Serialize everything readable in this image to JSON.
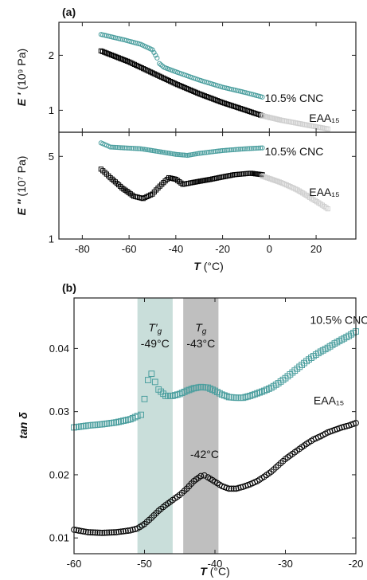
{
  "colors": {
    "cnc": "#4a9e9e",
    "eaa": "#000000",
    "eaa_faded": "#cfcfcf",
    "band_tg_prime": "#b7d3ce",
    "band_tg": "#a9a9a9"
  },
  "chart_data": [
    {
      "type": "scatter",
      "panel_label": "(a)",
      "ylabel_symbol": "E ′",
      "ylabel_unit": "(10⁹ Pa)",
      "xlim": [
        -90,
        37
      ],
      "ylim": [
        0.6,
        2.6
      ],
      "yticks": [
        {
          "v": 1,
          "label": "1"
        },
        {
          "v": 2,
          "label": "2"
        }
      ],
      "annotations": [
        {
          "text": "10.5%  CNC",
          "x": -2,
          "y": 1.22
        },
        {
          "text": "EAA₁₅",
          "x": 17,
          "y": 0.86
        }
      ],
      "series": [
        {
          "name": "10.5%  CNC",
          "marker": "circle",
          "color": "cnc",
          "x": [
            -72,
            -62,
            -55,
            -50,
            -48,
            -47,
            -45,
            -40,
            -30,
            -20,
            -10,
            -3
          ],
          "y": [
            2.38,
            2.28,
            2.2,
            2.1,
            1.95,
            1.85,
            1.78,
            1.7,
            1.55,
            1.42,
            1.32,
            1.24
          ]
        },
        {
          "name": "EAA₁₅",
          "marker": "square",
          "color": "eaa",
          "x": [
            -72,
            -60,
            -50,
            -40,
            -30,
            -20,
            -10,
            -3
          ],
          "y": [
            2.08,
            1.88,
            1.68,
            1.48,
            1.3,
            1.14,
            1.0,
            0.9
          ]
        },
        {
          "name": "",
          "marker": "square",
          "color": "eaa_faded",
          "x": [
            -3,
            5,
            15,
            25
          ],
          "y": [
            0.9,
            0.82,
            0.74,
            0.66
          ]
        }
      ]
    },
    {
      "type": "scatter",
      "ylabel_symbol": "E ″",
      "ylabel_unit": "(10⁷ Pa)",
      "xlabel_symbol": "T",
      "xlabel_unit": "(°C)",
      "xlim": [
        -90,
        37
      ],
      "ylim": [
        1,
        8
      ],
      "log_y": true,
      "xticks": [
        -80,
        -60,
        -40,
        -20,
        0,
        20
      ],
      "yticks": [
        {
          "v": 1,
          "label": "1"
        },
        {
          "v": 5,
          "label": "5"
        }
      ],
      "annotations": [
        {
          "text": "10.5%  CNC",
          "x": -2,
          "y": 5.5
        },
        {
          "text": "EAA₁₅",
          "x": 17,
          "y": 2.5
        }
      ],
      "series": [
        {
          "name": "10.5%  CNC",
          "marker": "circle",
          "color": "cnc",
          "x": [
            -72,
            -68,
            -62,
            -55,
            -50,
            -45,
            -40,
            -35,
            -30,
            -20,
            -10,
            -3
          ],
          "y": [
            6.5,
            6.0,
            5.9,
            5.8,
            5.6,
            5.4,
            5.2,
            5.1,
            5.3,
            5.6,
            5.8,
            5.9
          ]
        },
        {
          "name": "EAA₁₅",
          "marker": "square",
          "color": "eaa",
          "x": [
            -72,
            -68,
            -63,
            -58,
            -54,
            -50,
            -46,
            -43,
            -40,
            -37,
            -33,
            -25,
            -15,
            -8,
            -3
          ],
          "y": [
            3.9,
            3.3,
            2.7,
            2.3,
            2.2,
            2.4,
            2.9,
            3.3,
            3.2,
            2.9,
            3.0,
            3.2,
            3.5,
            3.6,
            3.5
          ]
        },
        {
          "name": "",
          "marker": "square",
          "color": "eaa_faded",
          "x": [
            -3,
            5,
            12,
            18,
            25
          ],
          "y": [
            3.4,
            3.0,
            2.6,
            2.2,
            1.8
          ]
        }
      ]
    },
    {
      "type": "scatter",
      "panel_label": "(b)",
      "ylabel_symbol": "tan δ",
      "xlabel_symbol": "T",
      "xlabel_unit": "(°C)",
      "xlim": [
        -60,
        -20
      ],
      "ylim": [
        0.0075,
        0.048
      ],
      "xticks": [
        -60,
        -50,
        -40,
        -30,
        -20
      ],
      "yticks": [
        {
          "v": 0.01,
          "label": "0.01"
        },
        {
          "v": 0.02,
          "label": "0.02"
        },
        {
          "v": 0.03,
          "label": "0.03"
        },
        {
          "v": 0.04,
          "label": "0.04"
        }
      ],
      "bands": [
        {
          "x0": -51,
          "x1": -46,
          "color": "band_tg_prime",
          "symbol": "T′g",
          "label": "-49°C"
        },
        {
          "x0": -44.5,
          "x1": -39.5,
          "color": "band_tg",
          "symbol": "Tg",
          "label": "-43°C"
        }
      ],
      "annotations": [
        {
          "text": "10.5% CNC",
          "x": -26.5,
          "y": 0.0445
        },
        {
          "text": "EAA₁₅",
          "x": -26,
          "y": 0.0318
        },
        {
          "text": "-42°C",
          "x": -43.5,
          "y": 0.0233
        }
      ],
      "series": [
        {
          "name": "10.5% CNC",
          "marker": "square",
          "color": "cnc",
          "x": [
            -60,
            -58,
            -56,
            -54,
            -52,
            -51,
            -50.5,
            -50,
            -49.5,
            -49,
            -48.5,
            -48,
            -47,
            -46,
            -45,
            -44,
            -43,
            -42,
            -41,
            -40,
            -39,
            -38,
            -37,
            -36,
            -35,
            -34,
            -33,
            -32,
            -31,
            -30,
            -29,
            -28,
            -27,
            -26,
            -25,
            -24,
            -23,
            -22,
            -21,
            -20
          ],
          "y": [
            0.0275,
            0.0278,
            0.028,
            0.0283,
            0.0288,
            0.0293,
            0.0295,
            0.032,
            0.035,
            0.036,
            0.0347,
            0.0335,
            0.0325,
            0.0325,
            0.0328,
            0.0333,
            0.0337,
            0.0339,
            0.0338,
            0.0333,
            0.0327,
            0.0323,
            0.0322,
            0.0322,
            0.0325,
            0.0329,
            0.0333,
            0.0338,
            0.0345,
            0.0353,
            0.0362,
            0.0371,
            0.038,
            0.0388,
            0.0395,
            0.0401,
            0.0408,
            0.0414,
            0.042,
            0.0427
          ]
        },
        {
          "name": "EAA₁₅",
          "marker": "circle",
          "color": "eaa",
          "x": [
            -60,
            -58,
            -56,
            -54,
            -52,
            -51,
            -50,
            -49,
            -48,
            -47,
            -46,
            -45,
            -44,
            -43,
            -42,
            -41.5,
            -41,
            -40,
            -39,
            -38,
            -37,
            -36,
            -35,
            -34,
            -33,
            -32,
            -31,
            -30,
            -29,
            -28,
            -27,
            -26,
            -25,
            -24,
            -23,
            -22,
            -21,
            -20
          ],
          "y": [
            0.0113,
            0.0109,
            0.0108,
            0.0109,
            0.0112,
            0.0115,
            0.0122,
            0.0132,
            0.0143,
            0.0152,
            0.016,
            0.0168,
            0.0178,
            0.019,
            0.0198,
            0.0199,
            0.0196,
            0.0189,
            0.0182,
            0.0178,
            0.0178,
            0.0181,
            0.0185,
            0.019,
            0.0197,
            0.0205,
            0.0215,
            0.0225,
            0.0233,
            0.0241,
            0.0249,
            0.0256,
            0.0261,
            0.0267,
            0.0271,
            0.0275,
            0.0278,
            0.0282
          ]
        }
      ]
    }
  ]
}
